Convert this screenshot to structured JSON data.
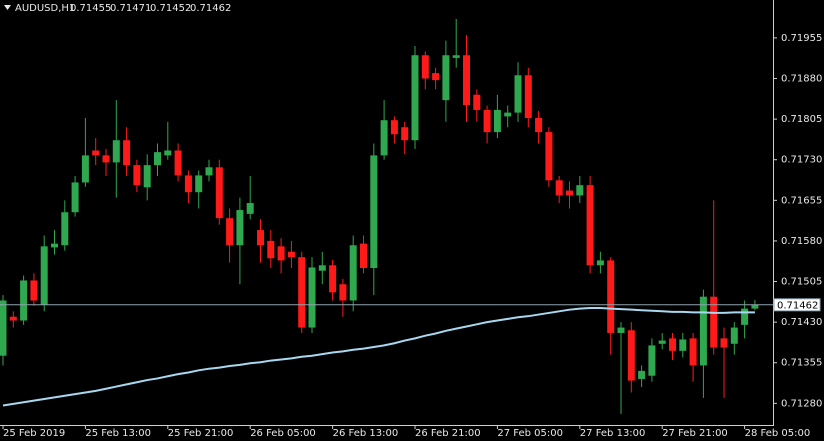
{
  "chart_data": {
    "type": "candlestick",
    "symbol": "AUDUSD,H1",
    "up_color": "#2fa84f",
    "down_color": "#ff1a1a",
    "price_line_color": "#8fa3b0",
    "ylim": [
      0.7124,
      0.72025
    ],
    "yticks": [
      0.71955,
      {
        "value": 0.7188,
        "label": "0.71880"
      },
      0.71805,
      {
        "value": 0.7173,
        "label": "0.71730"
      },
      0.71655,
      {
        "value": 0.7158,
        "label": "0.71580"
      },
      0.71505,
      {
        "value": 0.7143,
        "label": "0.71430"
      },
      0.71355,
      {
        "value": 0.7128,
        "label": "0.71280"
      }
    ],
    "categories": [
      "25 Feb 2019",
      null,
      null,
      null,
      null,
      null,
      null,
      null,
      "25 Feb 13:00",
      null,
      null,
      null,
      null,
      null,
      null,
      null,
      "25 Feb 21:00",
      null,
      null,
      null,
      null,
      null,
      null,
      null,
      "26 Feb 05:00",
      null,
      null,
      null,
      null,
      null,
      null,
      null,
      "26 Feb 13:00",
      null,
      null,
      null,
      null,
      null,
      null,
      null,
      "26 Feb 21:00",
      null,
      null,
      null,
      null,
      null,
      null,
      null,
      "27 Feb 05:00",
      null,
      null,
      null,
      null,
      null,
      null,
      null,
      "27 Feb 13:00",
      null,
      null,
      null,
      null,
      null,
      null,
      null,
      "27 Feb 21:00",
      null,
      null,
      null,
      null,
      null,
      null,
      null,
      "28 Feb 05:00",
      null
    ],
    "open": [
      0.71368,
      0.7144,
      0.71433,
      0.71507,
      0.71462,
      0.71568,
      0.71572,
      0.71633,
      0.71688,
      0.71747,
      0.71738,
      0.71725,
      0.71766,
      0.7172,
      0.71679,
      0.7172,
      0.71738,
      0.71747,
      0.71701,
      0.7167,
      0.71701,
      0.71716,
      0.71622,
      0.71572,
      0.7163,
      0.716,
      0.7158,
      0.7157,
      0.7156,
      0.7155,
      0.7142,
      0.71525,
      0.71535,
      0.715,
      0.7147,
      0.71575,
      0.7153,
      0.71738,
      0.71803,
      0.7179,
      0.71766,
      0.71923,
      0.7189,
      0.7184,
      0.71918,
      0.71923,
      0.7185,
      0.71822,
      0.71781,
      0.7181,
      0.71817,
      0.71886,
      0.71807,
      0.71781,
      0.71692,
      0.71673,
      0.71664,
      0.71683,
      0.71535,
      0.71544,
      0.7141,
      0.71415,
      0.71325,
      0.71331,
      0.7139,
      0.714,
      0.71377,
      0.714,
      0.7135,
      0.71477,
      0.714,
      0.7139,
      0.71425,
      0.71455
    ],
    "high": [
      0.7148,
      0.7145,
      0.71516,
      0.7152,
      0.7159,
      0.716,
      0.71655,
      0.717,
      0.71807,
      0.7177,
      0.7175,
      0.7184,
      0.7179,
      0.7173,
      0.7174,
      0.7176,
      0.718,
      0.7176,
      0.7171,
      0.7171,
      0.7173,
      0.7173,
      0.7164,
      0.7166,
      0.717,
      0.7162,
      0.716,
      0.71585,
      0.7158,
      0.7156,
      0.7155,
      0.7156,
      0.71545,
      0.7151,
      0.7159,
      0.7159,
      0.7176,
      0.7184,
      0.7181,
      0.718,
      0.7194,
      0.7193,
      0.719,
      0.7195,
      0.7199,
      0.7196,
      0.7186,
      0.7183,
      0.7185,
      0.7183,
      0.7191,
      0.719,
      0.7182,
      0.7179,
      0.717,
      0.7169,
      0.717,
      0.717,
      0.7156,
      0.7155,
      0.7143,
      0.7143,
      0.7135,
      0.714,
      0.7141,
      0.7141,
      0.7141,
      0.7141,
      0.7149,
      0.71655,
      0.7142,
      0.7143,
      0.7147,
      0.71471
    ],
    "low": [
      0.7135,
      0.7142,
      0.71425,
      0.7146,
      0.7145,
      0.71555,
      0.71562,
      0.71625,
      0.7168,
      0.7172,
      0.717,
      0.7166,
      0.717,
      0.7167,
      0.71655,
      0.717,
      0.7173,
      0.7169,
      0.7165,
      0.7164,
      0.7169,
      0.7161,
      0.7154,
      0.715,
      0.7162,
      0.7154,
      0.7153,
      0.7152,
      0.7153,
      0.7141,
      0.7141,
      0.715,
      0.7147,
      0.7144,
      0.7145,
      0.7152,
      0.7148,
      0.7173,
      0.7176,
      0.7174,
      0.7175,
      0.7186,
      0.7186,
      0.718,
      0.719,
      0.718,
      0.718,
      0.7176,
      0.7177,
      0.7179,
      0.718,
      0.7179,
      0.7176,
      0.7168,
      0.7165,
      0.7164,
      0.7165,
      0.7152,
      0.7152,
      0.7137,
      0.7126,
      0.713,
      0.7131,
      0.7132,
      0.7138,
      0.7136,
      0.71365,
      0.7132,
      0.7129,
      0.7137,
      0.7129,
      0.7137,
      0.714,
      0.71452
    ],
    "close": [
      0.7147,
      0.71433,
      0.71507,
      0.7147,
      0.7157,
      0.71575,
      0.71633,
      0.71688,
      0.71738,
      0.71738,
      0.71725,
      0.71766,
      0.7172,
      0.71683,
      0.7172,
      0.71744,
      0.71747,
      0.71701,
      0.7167,
      0.71701,
      0.71716,
      0.71622,
      0.71572,
      0.71637,
      0.7165,
      0.71572,
      0.71548,
      0.71544,
      0.7155,
      0.7142,
      0.71531,
      0.71535,
      0.71485,
      0.7147,
      0.71572,
      0.7153,
      0.71738,
      0.71803,
      0.71777,
      0.71766,
      0.71923,
      0.7188,
      0.71877,
      0.71923,
      0.71923,
      0.71831,
      0.71822,
      0.71781,
      0.71822,
      0.71817,
      0.71886,
      0.71807,
      0.71781,
      0.71692,
      0.71664,
      0.71664,
      0.71683,
      0.71535,
      0.71544,
      0.7141,
      0.7142,
      0.71322,
      0.7134,
      0.71387,
      0.71396,
      0.71377,
      0.71398,
      0.7135,
      0.71477,
      0.71383,
      0.71383,
      0.7142,
      0.71455,
      0.71462
    ],
    "ma": {
      "color": "#a8d8f0",
      "values": [
        0.71276,
        0.71279,
        0.71282,
        0.71285,
        0.71288,
        0.71291,
        0.71294,
        0.71297,
        0.713,
        0.71303,
        0.71307,
        0.71311,
        0.71315,
        0.71319,
        0.71323,
        0.71326,
        0.7133,
        0.71334,
        0.71337,
        0.71341,
        0.71344,
        0.71346,
        0.71349,
        0.71351,
        0.71354,
        0.71356,
        0.71359,
        0.71361,
        0.71363,
        0.71366,
        0.71368,
        0.71371,
        0.71374,
        0.71376,
        0.71379,
        0.71381,
        0.71384,
        0.71387,
        0.71391,
        0.71396,
        0.714,
        0.71405,
        0.71409,
        0.71414,
        0.71418,
        0.71422,
        0.71426,
        0.7143,
        0.71433,
        0.71436,
        0.71439,
        0.71441,
        0.71444,
        0.71447,
        0.7145,
        0.71453,
        0.71455,
        0.71456,
        0.71456,
        0.71455,
        0.71454,
        0.71453,
        0.71452,
        0.71451,
        0.7145,
        0.71449,
        0.71449,
        0.71448,
        0.71448,
        0.71447,
        0.71447,
        0.71448,
        0.71448,
        0.71448
      ]
    }
  }
}
